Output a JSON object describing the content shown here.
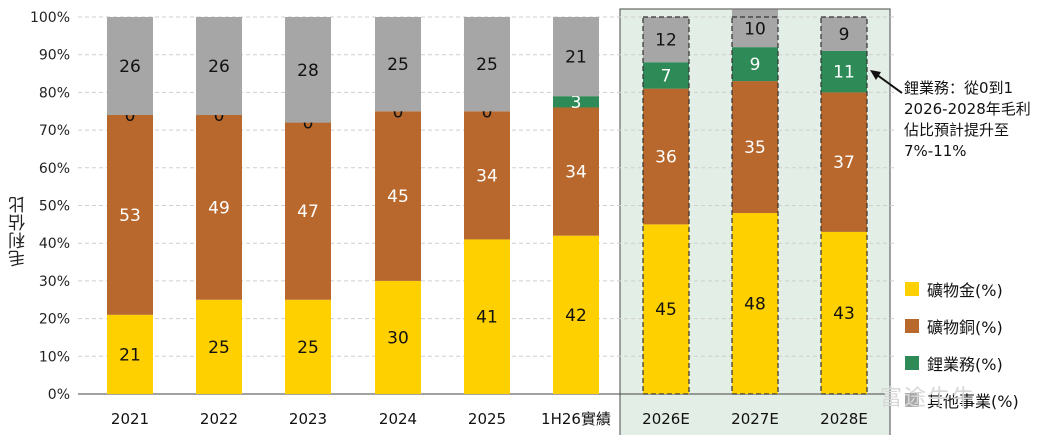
{
  "chart_data": {
    "type": "bar",
    "stacked": true,
    "categories": [
      "2021",
      "2022",
      "2023",
      "2024",
      "2025",
      "1H26實績",
      "2026E",
      "2027E",
      "2028E"
    ],
    "series": [
      {
        "name": "礦物金(%)",
        "values": [
          21,
          25,
          25,
          30,
          41,
          42,
          45,
          48,
          43
        ],
        "color": "#FFD000",
        "label_color": "#111111"
      },
      {
        "name": "礦物銅(%)",
        "values": [
          53,
          49,
          47,
          45,
          34,
          34,
          36,
          35,
          37
        ],
        "color": "#B8682C",
        "label_color": "#ffffff"
      },
      {
        "name": "鋰業務(%)",
        "values": [
          0,
          0,
          0,
          0,
          0,
          3,
          7,
          9,
          11
        ],
        "color": "#2E8B57",
        "label_color": "#ffffff"
      },
      {
        "name": "其他事業(%)",
        "values": [
          26,
          26,
          28,
          25,
          25,
          21,
          12,
          10,
          9
        ],
        "color": "#A6A6A6",
        "label_color": "#111111"
      }
    ],
    "ylabel": "毛利佔比",
    "ylim": [
      0,
      100
    ],
    "yticks": [
      "0%",
      "10%",
      "20%",
      "30%",
      "40%",
      "50%",
      "60%",
      "70%",
      "80%",
      "90%",
      "100%"
    ],
    "grid": true,
    "highlight_categories": [
      "2026E",
      "2027E",
      "2028E"
    ],
    "highlight_color": "#E3EEE6",
    "annotation": "鋰業務：從0到1\n2026-2028年毛利佔比預計提升至7%-11%",
    "annotation_lines": [
      "鋰業務：從0到1",
      "2026-2028年毛利",
      "佔比預計提升至",
      "7%-11%"
    ],
    "legend_position": "right"
  },
  "watermark": "富途牛牛"
}
